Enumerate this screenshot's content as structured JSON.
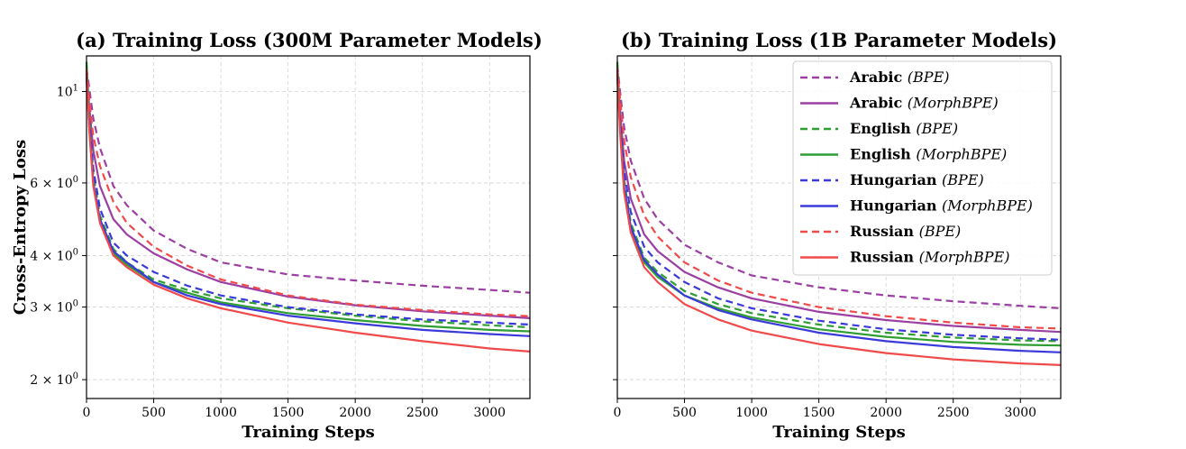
{
  "chart_data": [
    {
      "type": "line",
      "title": "(a) Training Loss (300M Parameter Models)",
      "xlabel": "Training Steps",
      "ylabel": "Cross-Entropy Loss",
      "xlim": [
        0,
        3300
      ],
      "ylim": [
        1.8,
        12.2
      ],
      "yscale": "log",
      "grid": true,
      "x_ticks": [
        0,
        500,
        1000,
        1500,
        2000,
        2500,
        3000
      ],
      "y_ticks": [
        {
          "value": 10,
          "base": "10",
          "exp": "1"
        },
        {
          "value": 6,
          "base": "6 × 10",
          "exp": "0"
        },
        {
          "value": 4,
          "base": "4 × 10",
          "exp": "0"
        },
        {
          "value": 3,
          "base": "3 × 10",
          "exp": "0"
        },
        {
          "value": 2,
          "base": "2 × 10",
          "exp": "0"
        }
      ],
      "series": [
        {
          "name": "Arabic (BPE)",
          "color": "#9b3fa3",
          "dash": true,
          "x": [
            0,
            20,
            50,
            100,
            200,
            300,
            500,
            750,
            1000,
            1500,
            2000,
            2500,
            3000,
            3300
          ],
          "values": [
            11.4,
            10.2,
            8.6,
            7.3,
            5.9,
            5.3,
            4.6,
            4.15,
            3.85,
            3.6,
            3.48,
            3.38,
            3.3,
            3.25
          ]
        },
        {
          "name": "Arabic (MorphBPE)",
          "color": "#9b3fa3",
          "dash": false,
          "x": [
            0,
            20,
            50,
            100,
            200,
            300,
            500,
            750,
            1000,
            1500,
            2000,
            2500,
            3000,
            3300
          ],
          "values": [
            11.0,
            9.2,
            7.2,
            5.9,
            4.9,
            4.5,
            4.05,
            3.7,
            3.45,
            3.18,
            3.03,
            2.93,
            2.86,
            2.82
          ]
        },
        {
          "name": "English (BPE)",
          "color": "#2f9e33",
          "dash": true,
          "x": [
            0,
            20,
            50,
            100,
            200,
            300,
            500,
            750,
            1000,
            1500,
            2000,
            2500,
            3000,
            3300
          ],
          "values": [
            11.8,
            8.8,
            6.3,
            5.0,
            4.15,
            3.85,
            3.5,
            3.3,
            3.15,
            2.98,
            2.86,
            2.77,
            2.71,
            2.68
          ]
        },
        {
          "name": "English (MorphBPE)",
          "color": "#2f9e33",
          "dash": false,
          "x": [
            0,
            20,
            50,
            100,
            200,
            300,
            500,
            750,
            1000,
            1500,
            2000,
            2500,
            3000,
            3300
          ],
          "values": [
            11.6,
            8.5,
            6.0,
            4.85,
            4.05,
            3.8,
            3.45,
            3.25,
            3.08,
            2.9,
            2.79,
            2.7,
            2.64,
            2.62
          ]
        },
        {
          "name": "Hungarian (BPE)",
          "color": "#3a3adb",
          "dash": true,
          "x": [
            0,
            20,
            50,
            100,
            200,
            300,
            500,
            750,
            1000,
            1500,
            2000,
            2500,
            3000,
            3300
          ],
          "values": [
            11.2,
            8.6,
            6.5,
            5.2,
            4.3,
            4.0,
            3.65,
            3.38,
            3.2,
            3.0,
            2.88,
            2.8,
            2.75,
            2.72
          ]
        },
        {
          "name": "Hungarian (MorphBPE)",
          "color": "#3a3adb",
          "dash": false,
          "x": [
            0,
            20,
            50,
            100,
            200,
            300,
            500,
            750,
            1000,
            1500,
            2000,
            2500,
            3000,
            3300
          ],
          "values": [
            10.8,
            8.2,
            6.0,
            4.9,
            4.1,
            3.85,
            3.45,
            3.2,
            3.05,
            2.86,
            2.74,
            2.64,
            2.58,
            2.55
          ]
        },
        {
          "name": "Russian (BPE)",
          "color": "#f04a4a",
          "dash": true,
          "x": [
            0,
            20,
            50,
            100,
            200,
            300,
            500,
            750,
            1000,
            1500,
            2000,
            2500,
            3000,
            3300
          ],
          "values": [
            11.3,
            9.5,
            7.8,
            6.6,
            5.4,
            4.8,
            4.2,
            3.78,
            3.5,
            3.2,
            3.04,
            2.95,
            2.88,
            2.85
          ]
        },
        {
          "name": "Russian (MorphBPE)",
          "color": "#f04a4a",
          "dash": false,
          "x": [
            0,
            20,
            50,
            100,
            200,
            300,
            500,
            750,
            1000,
            1500,
            2000,
            2500,
            3000,
            3300
          ],
          "values": [
            11.0,
            8.1,
            5.9,
            4.8,
            4.0,
            3.75,
            3.4,
            3.15,
            2.98,
            2.75,
            2.6,
            2.48,
            2.38,
            2.34
          ]
        }
      ]
    },
    {
      "type": "line",
      "title": "(b) Training Loss (1B Parameter Models)",
      "xlabel": "Training Steps",
      "ylabel": "",
      "xlim": [
        0,
        3300
      ],
      "ylim": [
        1.8,
        12.2
      ],
      "yscale": "log",
      "grid": true,
      "x_ticks": [
        0,
        500,
        1000,
        1500,
        2000,
        2500,
        3000
      ],
      "y_ticks": [],
      "series": [
        {
          "name": "Arabic (BPE)",
          "color": "#9b3fa3",
          "dash": true,
          "x": [
            0,
            20,
            50,
            100,
            200,
            300,
            500,
            750,
            1000,
            1500,
            2000,
            2500,
            3000,
            3300
          ],
          "values": [
            11.6,
            10.0,
            8.2,
            6.8,
            5.5,
            4.9,
            4.25,
            3.85,
            3.58,
            3.35,
            3.2,
            3.1,
            3.02,
            2.98
          ]
        },
        {
          "name": "Arabic (MorphBPE)",
          "color": "#9b3fa3",
          "dash": false,
          "x": [
            0,
            20,
            50,
            100,
            200,
            300,
            500,
            750,
            1000,
            1500,
            2000,
            2500,
            3000,
            3300
          ],
          "values": [
            11.2,
            9.0,
            6.8,
            5.5,
            4.5,
            4.1,
            3.65,
            3.35,
            3.15,
            2.92,
            2.79,
            2.7,
            2.64,
            2.61
          ]
        },
        {
          "name": "English (BPE)",
          "color": "#2f9e33",
          "dash": true,
          "x": [
            0,
            20,
            50,
            100,
            200,
            300,
            500,
            750,
            1000,
            1500,
            2000,
            2500,
            3000,
            3300
          ],
          "values": [
            11.8,
            8.6,
            6.1,
            4.8,
            3.95,
            3.65,
            3.28,
            3.05,
            2.9,
            2.72,
            2.6,
            2.53,
            2.49,
            2.48
          ]
        },
        {
          "name": "English (MorphBPE)",
          "color": "#2f9e33",
          "dash": false,
          "x": [
            0,
            20,
            50,
            100,
            200,
            300,
            500,
            750,
            1000,
            1500,
            2000,
            2500,
            3000,
            3300
          ],
          "values": [
            11.6,
            8.3,
            5.8,
            4.6,
            3.85,
            3.55,
            3.2,
            2.98,
            2.83,
            2.65,
            2.54,
            2.47,
            2.43,
            2.42
          ]
        },
        {
          "name": "Hungarian (BPE)",
          "color": "#3a3adb",
          "dash": true,
          "x": [
            0,
            20,
            50,
            100,
            200,
            300,
            500,
            750,
            1000,
            1500,
            2000,
            2500,
            3000,
            3300
          ],
          "values": [
            11.4,
            8.7,
            6.4,
            5.1,
            4.2,
            3.85,
            3.45,
            3.15,
            2.98,
            2.78,
            2.65,
            2.57,
            2.52,
            2.5
          ]
        },
        {
          "name": "Hungarian (MorphBPE)",
          "color": "#3a3adb",
          "dash": false,
          "x": [
            0,
            20,
            50,
            100,
            200,
            300,
            500,
            750,
            1000,
            1500,
            2000,
            2500,
            3000,
            3300
          ],
          "values": [
            10.9,
            8.2,
            5.9,
            4.7,
            3.9,
            3.6,
            3.2,
            2.95,
            2.8,
            2.6,
            2.48,
            2.4,
            2.35,
            2.33
          ]
        },
        {
          "name": "Russian (BPE)",
          "color": "#f04a4a",
          "dash": true,
          "x": [
            0,
            20,
            50,
            100,
            200,
            300,
            500,
            750,
            1000,
            1500,
            2000,
            2500,
            3000,
            3300
          ],
          "values": [
            11.4,
            9.6,
            7.6,
            6.2,
            5.0,
            4.45,
            3.85,
            3.48,
            3.25,
            3.0,
            2.85,
            2.75,
            2.68,
            2.66
          ]
        },
        {
          "name": "Russian (MorphBPE)",
          "color": "#f04a4a",
          "dash": false,
          "x": [
            0,
            20,
            50,
            100,
            200,
            300,
            500,
            750,
            1000,
            1500,
            2000,
            2500,
            3000,
            3300
          ],
          "values": [
            11.0,
            8.0,
            5.7,
            4.55,
            3.75,
            3.45,
            3.05,
            2.8,
            2.63,
            2.44,
            2.32,
            2.24,
            2.19,
            2.17
          ]
        }
      ]
    }
  ],
  "legend": {
    "placement": "top-right of panel (b)",
    "items": [
      {
        "bold": "Arabic",
        "italic": "(BPE)",
        "color": "#9b3fa3",
        "dash": true
      },
      {
        "bold": "Arabic",
        "italic": "(MorphBPE)",
        "color": "#9b3fa3",
        "dash": false
      },
      {
        "bold": "English",
        "italic": "(BPE)",
        "color": "#2f9e33",
        "dash": true
      },
      {
        "bold": "English",
        "italic": "(MorphBPE)",
        "color": "#2f9e33",
        "dash": false
      },
      {
        "bold": "Hungarian",
        "italic": "(BPE)",
        "color": "#3a3adb",
        "dash": true
      },
      {
        "bold": "Hungarian",
        "italic": "(MorphBPE)",
        "color": "#3a3adb",
        "dash": false
      },
      {
        "bold": "Russian",
        "italic": "(BPE)",
        "color": "#f04a4a",
        "dash": true
      },
      {
        "bold": "Russian",
        "italic": "(MorphBPE)",
        "color": "#f04a4a",
        "dash": false
      }
    ]
  }
}
